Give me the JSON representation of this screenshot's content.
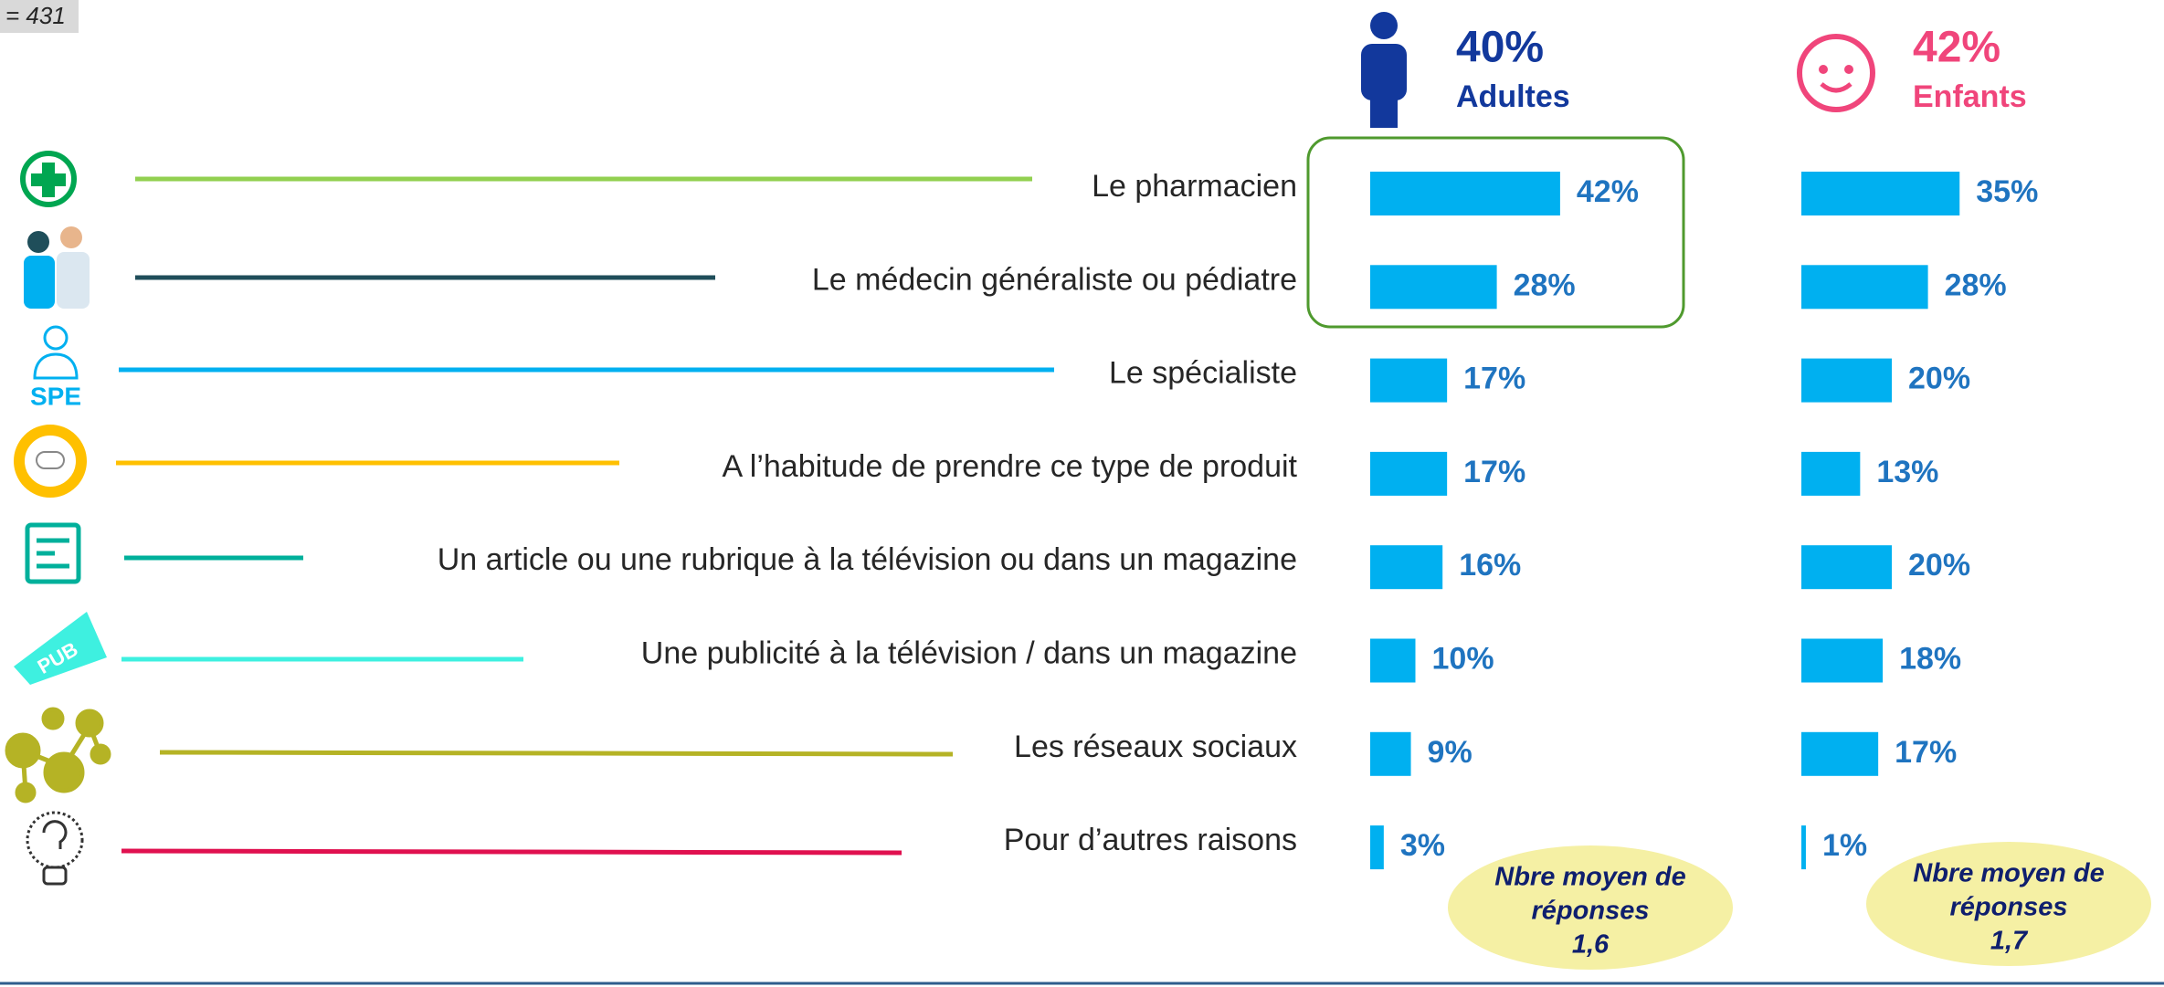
{
  "sample": "= 431",
  "chart_data": {
    "type": "bar",
    "orientation": "horizontal",
    "categories": [
      "Le pharmacien",
      "Le médecin généraliste ou pédiatre",
      "Le spécialiste",
      "A l’habitude de prendre ce type de produit",
      "Un article ou une rubrique à la télévision ou dans un magazine",
      "Une publicité à la télévision / dans un magazine",
      "Les réseaux sociaux",
      "Pour d’autres raisons"
    ],
    "xlim": [
      0,
      100
    ],
    "series": [
      {
        "name": "Adultes",
        "header_value": "40%",
        "header_color": "#12389c",
        "color": "#00b0f0",
        "values": [
          42,
          28,
          17,
          17,
          16,
          10,
          9,
          3
        ],
        "value_labels": [
          "42%",
          "28%",
          "17%",
          "17%",
          "16%",
          "10%",
          "9%",
          "3%"
        ],
        "note": [
          "Nbre moyen de",
          "réponses",
          "1,6"
        ]
      },
      {
        "name": "Enfants",
        "header_value": "42%",
        "header_color": "#f0457b",
        "color": "#00b0f0",
        "values": [
          35,
          28,
          20,
          13,
          20,
          18,
          17,
          1
        ],
        "value_labels": [
          "35%",
          "28%",
          "20%",
          "13%",
          "20%",
          "18%",
          "17%",
          "1%"
        ],
        "note": [
          "Nbre moyen de",
          "réponses",
          "1,7"
        ]
      }
    ]
  }
}
